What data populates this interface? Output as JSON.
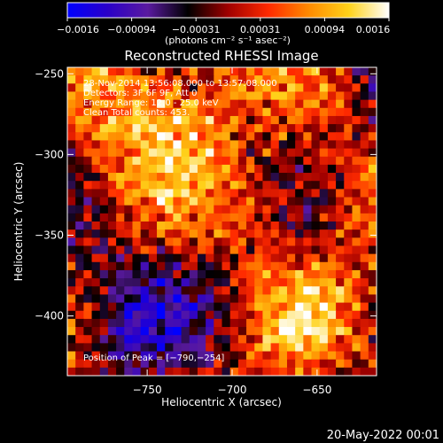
{
  "colorbar": {
    "ticks": [
      "-0.0016",
      "-0.00094",
      "-0.00031",
      "0.00031",
      "0.00094",
      "0.0016"
    ],
    "units": "(photons cm⁻² s⁻¹ asec⁻²)",
    "colors": [
      "#0000ff",
      "#2a00c8",
      "#5a1aa0",
      "#000000",
      "#a00000",
      "#ff2a00",
      "#ff8a00",
      "#ffd21a",
      "#ffffff"
    ]
  },
  "chart_data": {
    "type": "heatmap",
    "title": "Reconstructed RHESSI Image",
    "xlabel": "Heliocentric X (arcsec)",
    "ylabel": "Heliocentric Y (arcsec)",
    "xlim": [
      -797,
      -615
    ],
    "ylim": [
      -437,
      -246
    ],
    "x_ticks": [
      -750,
      -700,
      -650
    ],
    "x_tick_labels": [
      "−750",
      "−700",
      "−650"
    ],
    "y_ticks": [
      -250,
      -300,
      -350,
      -400
    ],
    "y_tick_labels": [
      "−250",
      "−300",
      "−350",
      "−400"
    ],
    "value_range": [
      -0.0016,
      0.0016
    ],
    "annotations": [
      "28-Nov-2014 13:56:08.000 to 13:57:08.000",
      "Detectors: 3F 6F 9F, Att 0",
      "Energy Range: 12.0 - 25.0 keV",
      "Clean    Total counts: 453."
    ],
    "peak_label": "Position of Peak = [−790,−254]",
    "peak": [
      -790,
      -254
    ]
  },
  "timestamp": "20-May-2022 00:01"
}
